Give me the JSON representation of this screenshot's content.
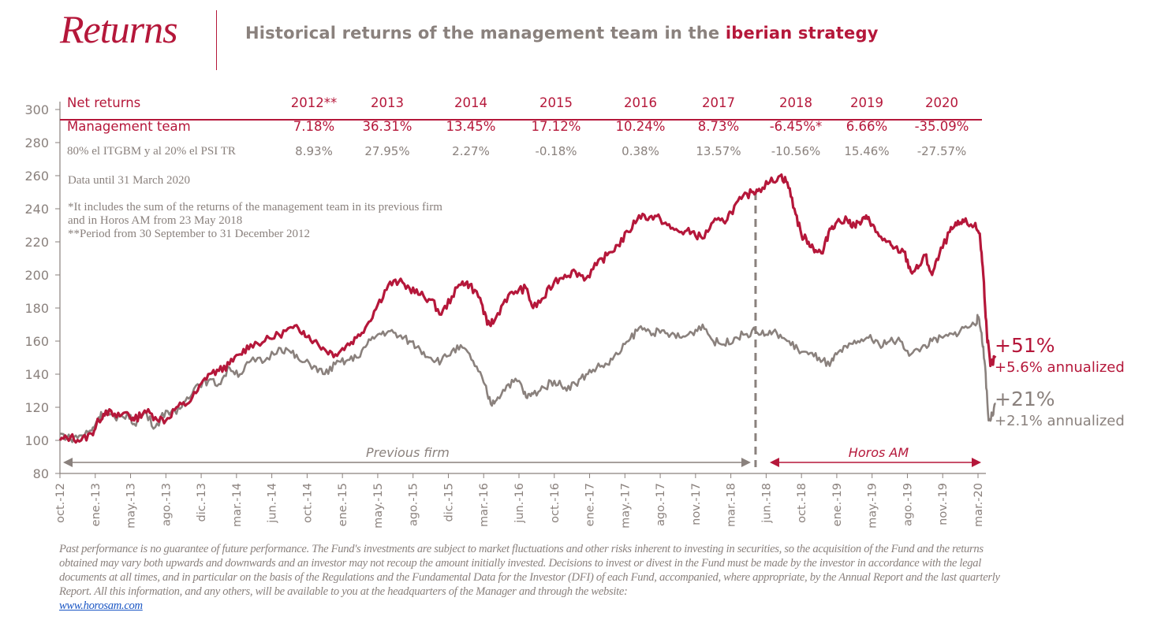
{
  "header": {
    "title": "Returns",
    "subtitle_prefix": "Historical returns of the management team in the ",
    "subtitle_accent": "iberian strategy"
  },
  "colors": {
    "accent": "#b5173a",
    "gray": "#8a817d",
    "axis": "#8a817d",
    "link": "#1a56c4"
  },
  "returns_table": {
    "header_label": "Net returns",
    "years": [
      "2012**",
      "2013",
      "2014",
      "2015",
      "2016",
      "2017",
      "2018",
      "2019",
      "2020"
    ],
    "rows": [
      {
        "label": "Management team",
        "values": [
          "7.18%",
          "36.31%",
          "13.45%",
          "17.12%",
          "10.24%",
          "8.73%",
          "-6.45%*",
          "6.66%",
          "-35.09%"
        ]
      },
      {
        "label": "80% el ITGBM y al 20% el PSI TR",
        "values": [
          "8.93%",
          "27.95%",
          "2.27%",
          "-0.18%",
          "0.38%",
          "13.57%",
          "-10.56%",
          "15.46%",
          "-27.57%"
        ]
      }
    ]
  },
  "notes": {
    "data_until": "Data until 31 March 2020",
    "footnote1_line1": "*It includes the sum of the returns of the management team in its previous firm",
    "footnote1_line2": "and in Horos AM from 23 May 2018",
    "footnote2": "**Period from 30 September to 31 December 2012"
  },
  "end_labels": {
    "team_total": "+51%",
    "team_annualized": "+5.6% annualized",
    "index_total": "+21%",
    "index_annualized": "+2.1% annualized"
  },
  "chart_data": {
    "type": "line",
    "title": "Historical returns of the management team in the iberian strategy",
    "xlabel": "",
    "ylabel": "",
    "ylim": [
      80,
      300
    ],
    "yticks": [
      80,
      100,
      120,
      140,
      160,
      180,
      200,
      220,
      240,
      260,
      280,
      300
    ],
    "xtick_labels": [
      "oct.-12",
      "ene.-13",
      "may.-13",
      "ago.-13",
      "dic.-13",
      "mar.-14",
      "jun.-14",
      "oct.-14",
      "ene.-15",
      "may.-15",
      "ago.-15",
      "dic.-15",
      "mar.-16",
      "jun.-16",
      "oct.-16",
      "ene.-17",
      "may.-17",
      "ago.-17",
      "nov.-17",
      "mar.-18",
      "jun.-18",
      "oct.-18",
      "ene.-19",
      "may.-19",
      "ago.-19",
      "nov.-19",
      "mar.-20"
    ],
    "x_unit": "tick index (0 = oct.-12, 26 = mar.-20)",
    "grid": false,
    "annotations": {
      "previous_firm_label": "Previous firm",
      "horos_label": "Horos AM",
      "split_at_x": 19.7
    },
    "series": [
      {
        "name": "Management team",
        "color": "#b5173a",
        "points": [
          [
            0,
            100
          ],
          [
            0.3,
            102
          ],
          [
            0.6,
            100
          ],
          [
            0.9,
            104
          ],
          [
            1.1,
            112
          ],
          [
            1.3,
            118
          ],
          [
            1.6,
            114
          ],
          [
            1.9,
            117
          ],
          [
            2.1,
            112
          ],
          [
            2.4,
            118
          ],
          [
            2.7,
            114
          ],
          [
            3.0,
            112
          ],
          [
            3.3,
            120
          ],
          [
            3.6,
            122
          ],
          [
            3.9,
            130
          ],
          [
            4.2,
            140
          ],
          [
            4.5,
            142
          ],
          [
            4.8,
            146
          ],
          [
            5.1,
            152
          ],
          [
            5.4,
            158
          ],
          [
            5.8,
            160
          ],
          [
            6.2,
            164
          ],
          [
            6.6,
            168
          ],
          [
            6.9,
            166
          ],
          [
            7.2,
            160
          ],
          [
            7.5,
            155
          ],
          [
            7.8,
            152
          ],
          [
            8.1,
            157
          ],
          [
            8.4,
            162
          ],
          [
            8.7,
            170
          ],
          [
            9.0,
            182
          ],
          [
            9.3,
            194
          ],
          [
            9.6,
            196
          ],
          [
            9.9,
            192
          ],
          [
            10.2,
            188
          ],
          [
            10.5,
            185
          ],
          [
            10.8,
            176
          ],
          [
            11.1,
            187
          ],
          [
            11.4,
            196
          ],
          [
            11.6,
            194
          ],
          [
            11.9,
            186
          ],
          [
            12.1,
            170
          ],
          [
            12.3,
            172
          ],
          [
            12.6,
            185
          ],
          [
            12.9,
            190
          ],
          [
            13.2,
            192
          ],
          [
            13.4,
            180
          ],
          [
            13.7,
            186
          ],
          [
            14.0,
            196
          ],
          [
            14.3,
            200
          ],
          [
            14.6,
            202
          ],
          [
            14.9,
            198
          ],
          [
            15.2,
            206
          ],
          [
            15.5,
            212
          ],
          [
            15.8,
            218
          ],
          [
            16.1,
            226
          ],
          [
            16.4,
            236
          ],
          [
            16.7,
            235
          ],
          [
            17.0,
            234
          ],
          [
            17.3,
            228
          ],
          [
            17.6,
            226
          ],
          [
            17.9,
            226
          ],
          [
            18.2,
            222
          ],
          [
            18.5,
            232
          ],
          [
            18.8,
            232
          ],
          [
            19.0,
            238
          ],
          [
            19.3,
            246
          ],
          [
            19.6,
            250
          ],
          [
            19.8,
            252
          ],
          [
            20.1,
            256
          ],
          [
            20.4,
            260
          ],
          [
            20.6,
            256
          ],
          [
            20.8,
            240
          ],
          [
            21.0,
            224
          ],
          [
            21.2,
            220
          ],
          [
            21.4,
            215
          ],
          [
            21.6,
            213
          ],
          [
            21.8,
            228
          ],
          [
            22.0,
            232
          ],
          [
            22.3,
            233
          ],
          [
            22.5,
            230
          ],
          [
            22.7,
            232
          ],
          [
            22.9,
            235
          ],
          [
            23.1,
            226
          ],
          [
            23.4,
            220
          ],
          [
            23.6,
            216
          ],
          [
            23.9,
            214
          ],
          [
            24.1,
            202
          ],
          [
            24.3,
            204
          ],
          [
            24.5,
            212
          ],
          [
            24.7,
            200
          ],
          [
            24.9,
            212
          ],
          [
            25.2,
            226
          ],
          [
            25.4,
            230
          ],
          [
            25.6,
            232
          ],
          [
            25.9,
            230
          ],
          [
            26.05,
            225
          ],
          [
            26.15,
            200
          ],
          [
            26.25,
            165
          ],
          [
            26.35,
            145
          ],
          [
            26.5,
            150
          ]
        ]
      },
      {
        "name": "80% el ITGBM y al 20% el PSI TR",
        "color": "#8a817d",
        "points": [
          [
            0,
            104
          ],
          [
            0.3,
            101
          ],
          [
            0.6,
            103
          ],
          [
            0.9,
            106
          ],
          [
            1.1,
            114
          ],
          [
            1.3,
            118
          ],
          [
            1.6,
            112
          ],
          [
            1.9,
            116
          ],
          [
            2.1,
            110
          ],
          [
            2.4,
            117
          ],
          [
            2.7,
            108
          ],
          [
            3.0,
            118
          ],
          [
            3.3,
            116
          ],
          [
            3.6,
            126
          ],
          [
            3.9,
            134
          ],
          [
            4.2,
            136
          ],
          [
            4.5,
            134
          ],
          [
            4.8,
            144
          ],
          [
            5.1,
            140
          ],
          [
            5.4,
            148
          ],
          [
            5.8,
            148
          ],
          [
            6.2,
            156
          ],
          [
            6.5,
            154
          ],
          [
            6.8,
            148
          ],
          [
            7.2,
            145
          ],
          [
            7.5,
            140
          ],
          [
            7.8,
            146
          ],
          [
            8.1,
            148
          ],
          [
            8.4,
            150
          ],
          [
            8.7,
            158
          ],
          [
            9.0,
            164
          ],
          [
            9.3,
            166
          ],
          [
            9.6,
            163
          ],
          [
            9.9,
            160
          ],
          [
            10.2,
            155
          ],
          [
            10.5,
            150
          ],
          [
            10.8,
            148
          ],
          [
            11.1,
            154
          ],
          [
            11.4,
            156
          ],
          [
            11.7,
            148
          ],
          [
            12.0,
            135
          ],
          [
            12.2,
            122
          ],
          [
            12.4,
            126
          ],
          [
            12.7,
            134
          ],
          [
            13.0,
            136
          ],
          [
            13.2,
            126
          ],
          [
            13.4,
            128
          ],
          [
            13.7,
            132
          ],
          [
            14.0,
            136
          ],
          [
            14.3,
            132
          ],
          [
            14.6,
            134
          ],
          [
            14.9,
            140
          ],
          [
            15.2,
            144
          ],
          [
            15.5,
            146
          ],
          [
            15.8,
            152
          ],
          [
            16.1,
            160
          ],
          [
            16.4,
            168
          ],
          [
            16.7,
            166
          ],
          [
            17.0,
            165
          ],
          [
            17.3,
            164
          ],
          [
            17.6,
            162
          ],
          [
            17.9,
            165
          ],
          [
            18.2,
            170
          ],
          [
            18.5,
            160
          ],
          [
            18.8,
            158
          ],
          [
            19.1,
            162
          ],
          [
            19.4,
            164
          ],
          [
            19.7,
            166
          ],
          [
            20.0,
            164
          ],
          [
            20.3,
            165
          ],
          [
            20.6,
            160
          ],
          [
            20.9,
            155
          ],
          [
            21.2,
            152
          ],
          [
            21.5,
            150
          ],
          [
            21.8,
            145
          ],
          [
            22.0,
            152
          ],
          [
            22.3,
            156
          ],
          [
            22.6,
            160
          ],
          [
            22.9,
            162
          ],
          [
            23.2,
            158
          ],
          [
            23.5,
            160
          ],
          [
            23.8,
            160
          ],
          [
            24.1,
            152
          ],
          [
            24.4,
            156
          ],
          [
            24.7,
            160
          ],
          [
            25.0,
            162
          ],
          [
            25.3,
            164
          ],
          [
            25.6,
            168
          ],
          [
            25.9,
            170
          ],
          [
            26.0,
            174
          ],
          [
            26.1,
            165
          ],
          [
            26.2,
            145
          ],
          [
            26.3,
            112
          ],
          [
            26.4,
            115
          ],
          [
            26.5,
            122
          ]
        ]
      }
    ]
  },
  "disclaimer": {
    "text": "Past performance is no guarantee of future performance. The Fund's investments are subject to market fluctuations and other risks inherent to investing in securities, so the acquisition of the Fund and the returns obtained may vary both upwards and downwards and an investor may not recoup the amount initially invested. Decisions to invest or divest in the Fund must be made by the investor in accordance with the legal documents at all times, and in particular on the basis of the Regulations and the Fundamental Data for the Investor (DFI) of each Fund, accompanied, where appropriate, by the Annual Report and the last quarterly Report. All this information, and any others, will be available to you at the headquarters of the Manager and through the website:",
    "link_text": "www.horosam.com"
  }
}
